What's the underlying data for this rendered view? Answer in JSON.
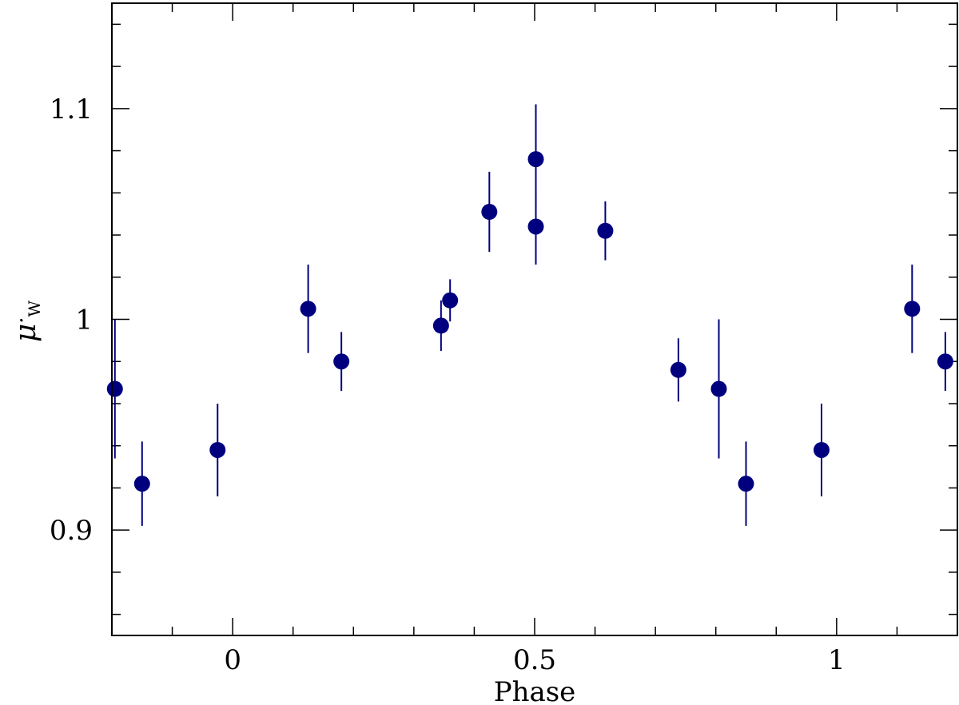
{
  "chart_data": {
    "type": "scatter",
    "xlabel": "Phase",
    "ylabel": "μ",
    "ylabel_sub": "W",
    "ylabel_dot": "·",
    "xlim": [
      -0.2,
      1.2
    ],
    "ylim": [
      0.85,
      1.15
    ],
    "x_ticks": [
      0,
      0.5,
      1
    ],
    "x_tick_labels": [
      "0",
      "0.5",
      "1"
    ],
    "y_ticks": [
      0.9,
      1.0,
      1.1
    ],
    "y_tick_labels": [
      "0.9",
      "1",
      "1.1"
    ],
    "x_minor_step": 0.1,
    "y_minor_step": 0.02,
    "grid": false,
    "colors": {
      "marker": "#00007f",
      "errorbar": "#00007f",
      "axis": "#000000"
    },
    "points": [
      {
        "x": -0.195,
        "y": 0.967,
        "yerr": 0.033
      },
      {
        "x": -0.15,
        "y": 0.922,
        "yerr": 0.02
      },
      {
        "x": -0.025,
        "y": 0.938,
        "yerr": 0.022
      },
      {
        "x": 0.125,
        "y": 1.005,
        "yerr": 0.021
      },
      {
        "x": 0.18,
        "y": 0.98,
        "yerr": 0.014
      },
      {
        "x": 0.345,
        "y": 0.997,
        "yerr": 0.012
      },
      {
        "x": 0.36,
        "y": 1.009,
        "yerr": 0.01
      },
      {
        "x": 0.425,
        "y": 1.051,
        "yerr": 0.019
      },
      {
        "x": 0.502,
        "y": 1.076,
        "yerr": 0.026
      },
      {
        "x": 0.502,
        "y": 1.044,
        "yerr": 0.018
      },
      {
        "x": 0.617,
        "y": 1.042,
        "yerr": 0.014
      },
      {
        "x": 0.738,
        "y": 0.976,
        "yerr": 0.015
      },
      {
        "x": 0.805,
        "y": 0.967,
        "yerr": 0.033
      },
      {
        "x": 0.85,
        "y": 0.922,
        "yerr": 0.02
      },
      {
        "x": 0.975,
        "y": 0.938,
        "yerr": 0.022
      },
      {
        "x": 1.125,
        "y": 1.005,
        "yerr": 0.021
      },
      {
        "x": 1.18,
        "y": 0.98,
        "yerr": 0.014
      }
    ]
  }
}
